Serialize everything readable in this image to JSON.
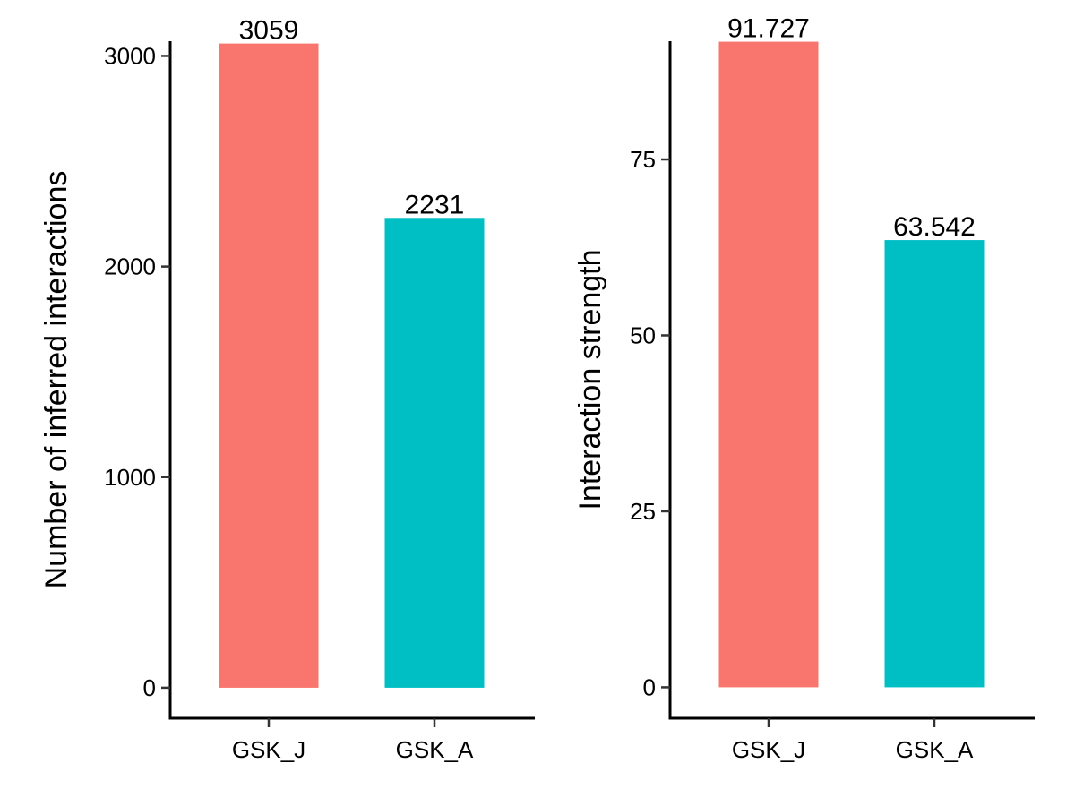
{
  "chart_data": [
    {
      "type": "bar",
      "categories": [
        "GSK_J",
        "GSK_A"
      ],
      "values": [
        3059,
        2231
      ],
      "value_labels": [
        "3059",
        "2231"
      ],
      "colors": [
        "#F8766D",
        "#00BFC4"
      ],
      "title": "",
      "xlabel": "",
      "ylabel": "Number of inferred interactions",
      "ylim": [
        -145,
        3070
      ],
      "yticks": [
        0,
        1000,
        2000,
        3000
      ],
      "ytick_labels": [
        "0",
        "1000",
        "2000",
        "3000"
      ],
      "grid": false,
      "legend": "none"
    },
    {
      "type": "bar",
      "categories": [
        "GSK_J",
        "GSK_A"
      ],
      "values": [
        91.727,
        63.542
      ],
      "value_labels": [
        "91.727",
        "63.542"
      ],
      "colors": [
        "#F8766D",
        "#00BFC4"
      ],
      "title": "",
      "xlabel": "",
      "ylabel": "Interaction strength",
      "ylim": [
        -4.4,
        91.8
      ],
      "yticks": [
        0,
        25,
        50,
        75
      ],
      "ytick_labels": [
        "0",
        "25",
        "50",
        "75"
      ],
      "grid": false,
      "legend": "none"
    }
  ]
}
